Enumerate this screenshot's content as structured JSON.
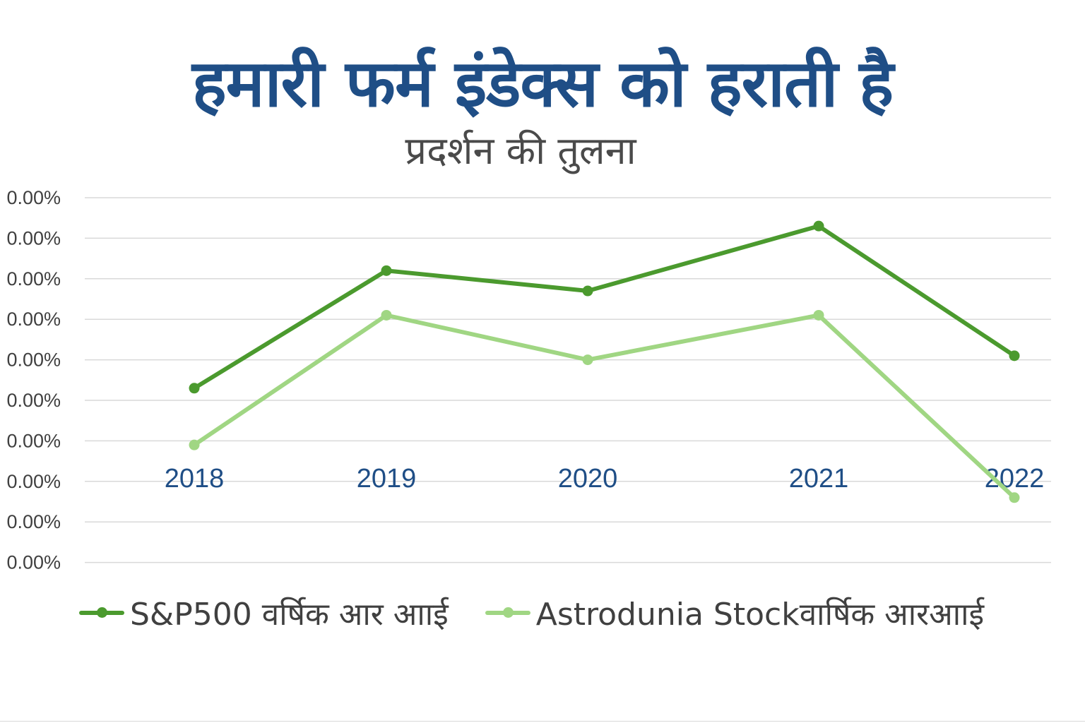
{
  "chart_data": {
    "type": "line",
    "title": "हमारी फर्म इंडेक्स को हराती है",
    "subtitle": "प्रदर्शन की तुलना",
    "categories": [
      "2018",
      "2019",
      "2020",
      "2021",
      "2022"
    ],
    "y_tick_labels": [
      "0.00%",
      "0.00%",
      "0.00%",
      "0.00%",
      "0.00%",
      "0.00%",
      "0.00%",
      "0.00%",
      "0.00%",
      "0.00%"
    ],
    "grid": true,
    "legend_position": "bottom",
    "series": [
      {
        "name": "S&P500 वर्षिक आर आाई",
        "color": "#4b9a2e",
        "values": [
          4.3,
          7.2,
          6.7,
          8.3,
          5.1
        ]
      },
      {
        "name": "Astrodunia Stockवार्षिक आरआाई",
        "color": "#a0d683",
        "values": [
          2.9,
          6.1,
          5.0,
          6.1,
          1.6
        ]
      }
    ],
    "ylim": [
      0,
      9
    ]
  }
}
